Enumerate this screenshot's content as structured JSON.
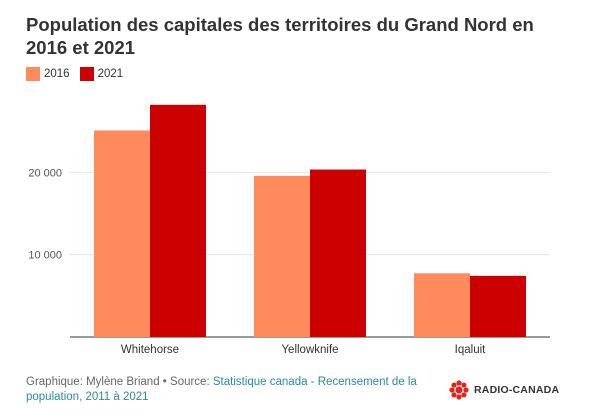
{
  "title": "Population des capitales des territoires du Grand Nord en 2016 et 2021",
  "chart_data": {
    "type": "bar",
    "categories": [
      "Whitehorse",
      "Yellowknife",
      "Iqaluit"
    ],
    "series": [
      {
        "name": "2016",
        "color": "#ff8a5b",
        "values": [
          25085,
          19569,
          7740
        ]
      },
      {
        "name": "2021",
        "color": "#cc0000",
        "values": [
          28201,
          20340,
          7429
        ]
      }
    ],
    "ylim": [
      0,
      30000
    ],
    "yticks": [
      10000,
      20000
    ],
    "ytick_labels": [
      "10 000",
      "20 000"
    ],
    "grid": true,
    "legend": "top-left"
  },
  "footer": {
    "credit": "Graphique: Mylène Briand • Source: ",
    "source_link": "Statistique canada - Recensement de la population, 2011 à 2021"
  },
  "logo": {
    "text": "RADIO-CANADA",
    "color": "#e1251b"
  }
}
